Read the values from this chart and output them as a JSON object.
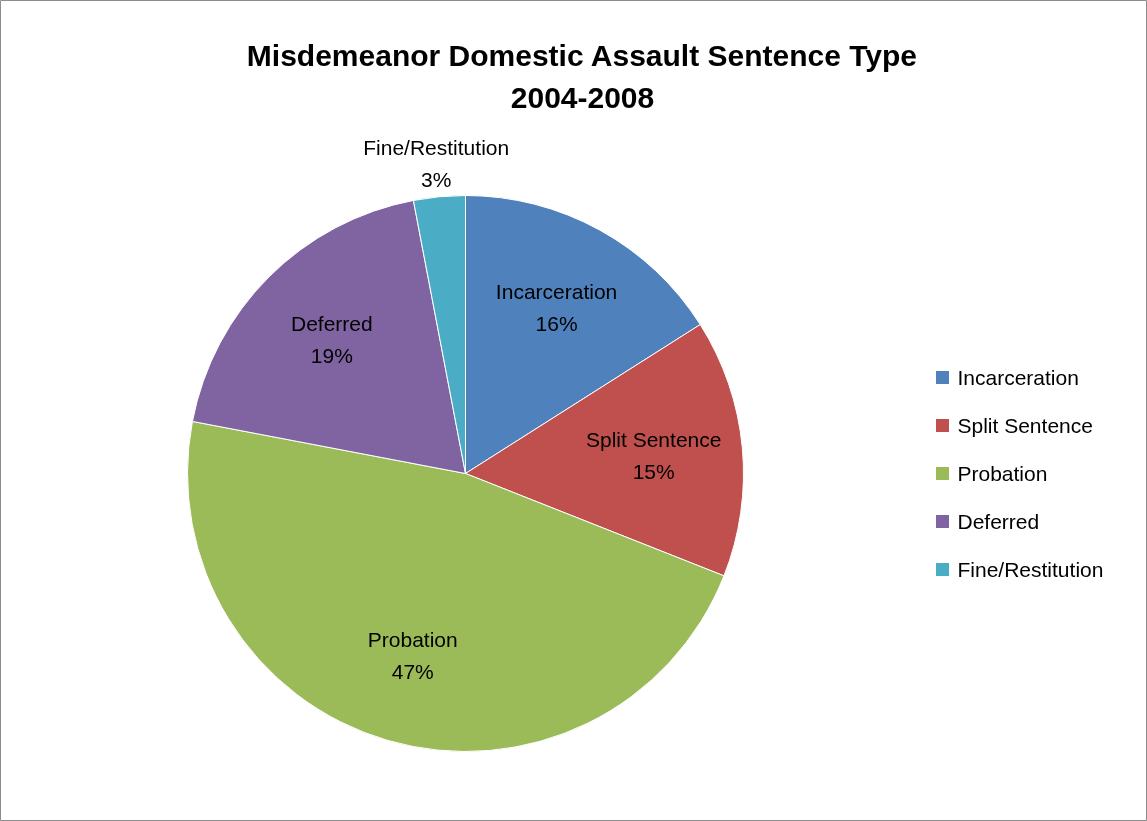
{
  "chart_data": {
    "type": "pie",
    "title": "Misdemeanor Domestic Assault Sentence Type\n2004-2008",
    "categories": [
      "Incarceration",
      "Split Sentence",
      "Probation",
      "Deferred",
      "Fine/Restitution"
    ],
    "values": [
      16,
      15,
      47,
      19,
      3
    ],
    "colors": [
      "#4f81bd",
      "#c0504d",
      "#9bbb59",
      "#8064a2",
      "#4bacc6"
    ],
    "value_labels": [
      "16%",
      "15%",
      "47%",
      "19%",
      "3%"
    ],
    "legend": "right"
  }
}
